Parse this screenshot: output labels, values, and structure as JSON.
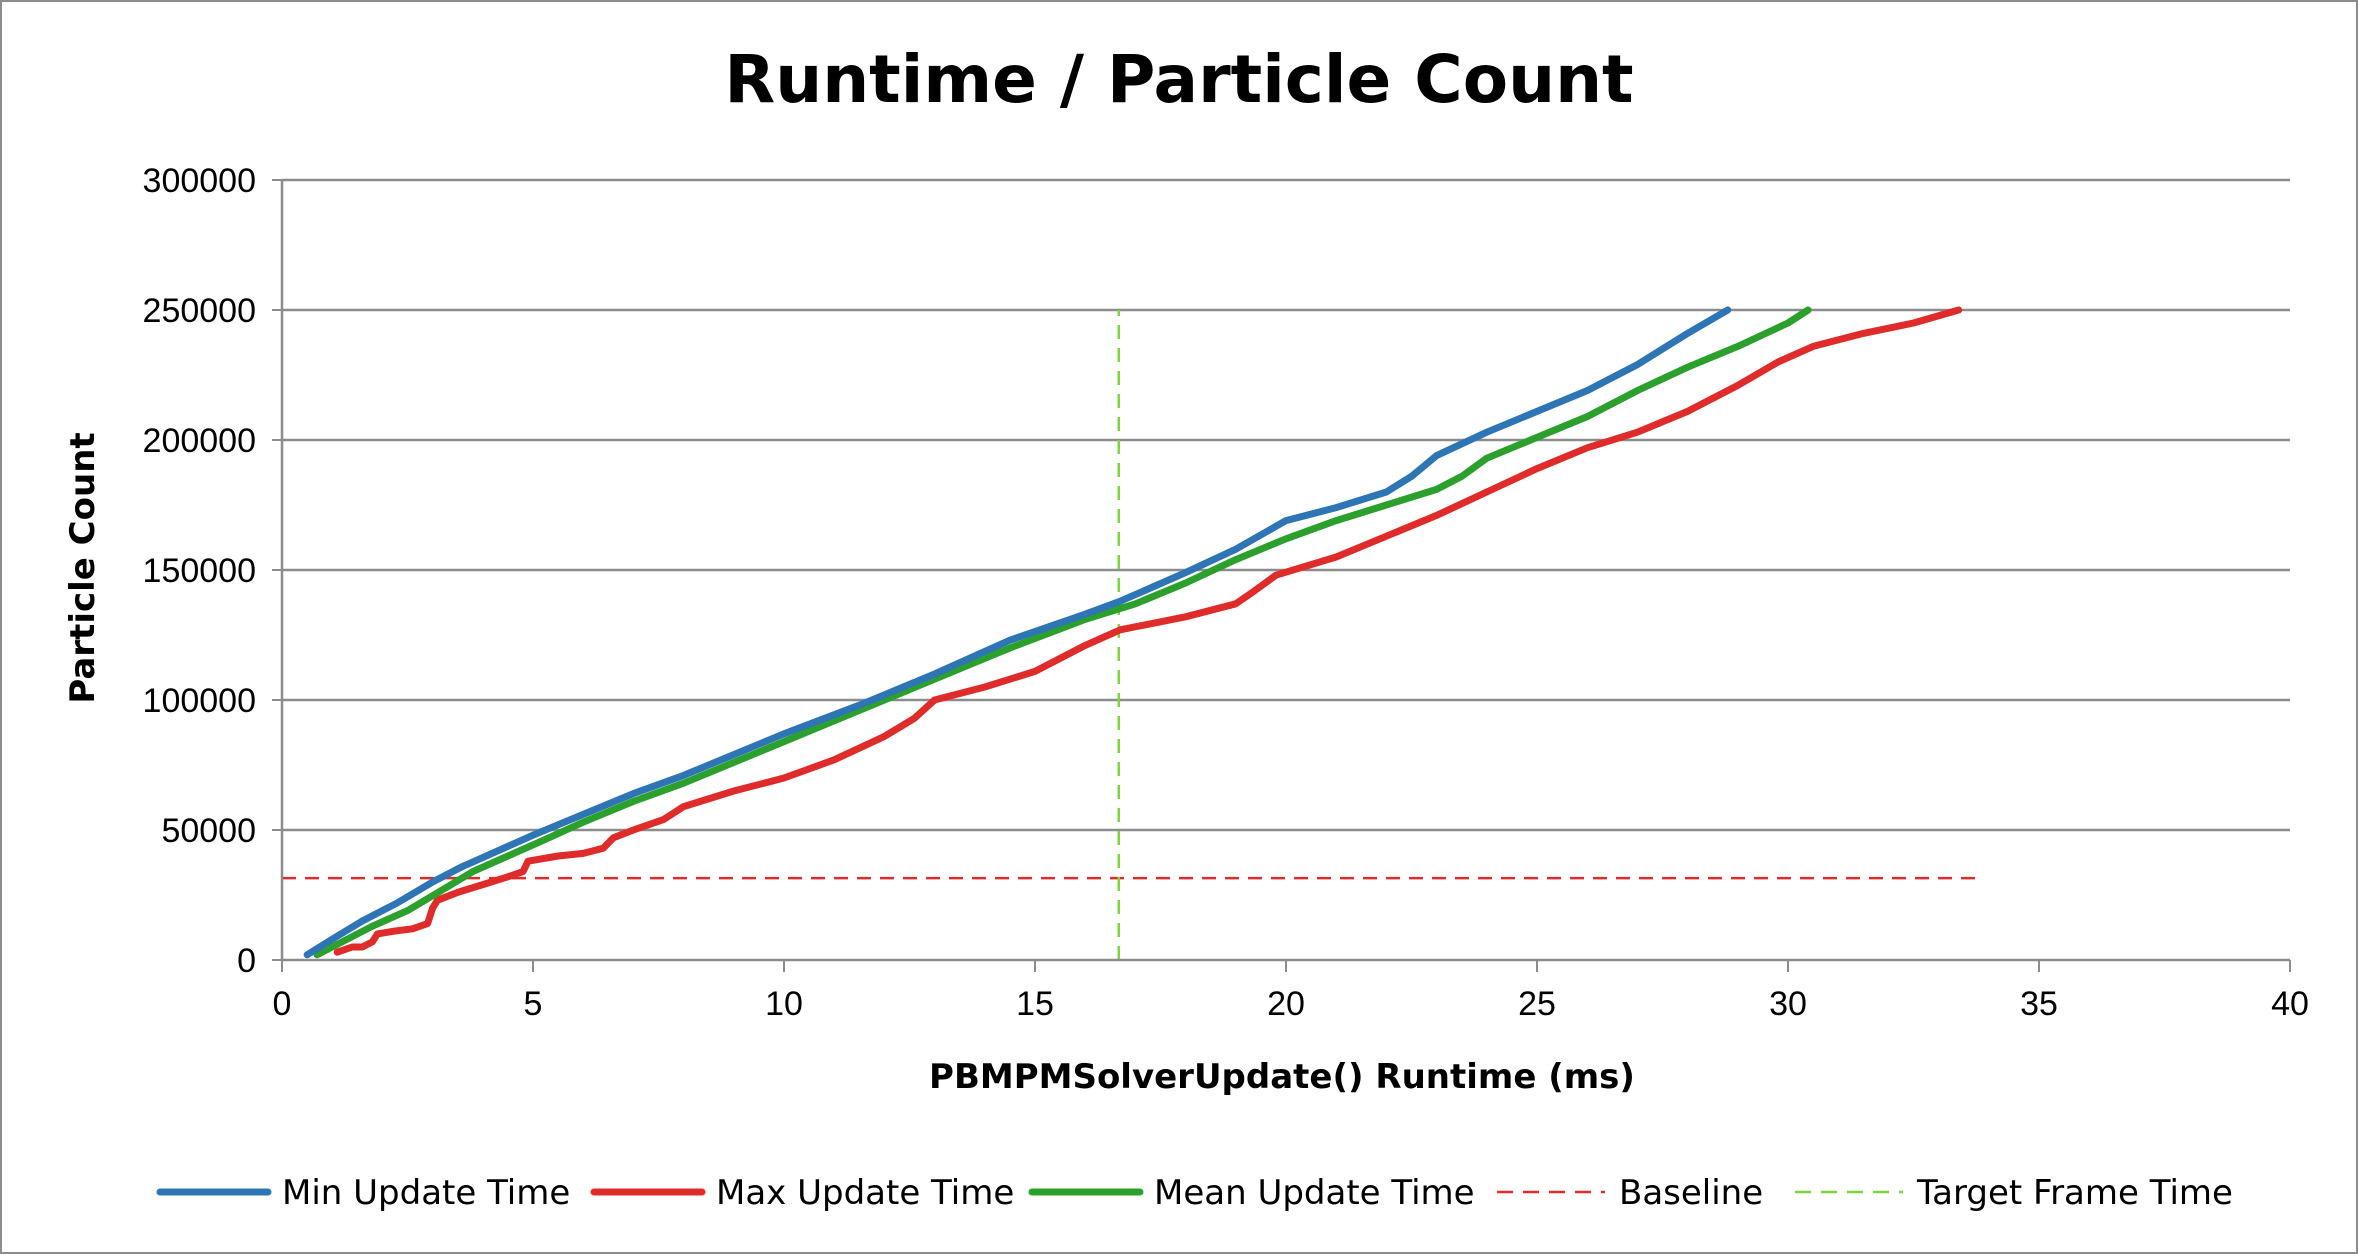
{
  "chart_data": {
    "type": "line",
    "title": "Runtime / Particle Count",
    "xlabel": "PBMPMSolverUpdate() Runtime (ms)",
    "ylabel": "Particle Count",
    "xlim": [
      0,
      40
    ],
    "ylim": [
      0,
      300000
    ],
    "x_ticks": [
      "0",
      "5",
      "10",
      "15",
      "20",
      "25",
      "30",
      "35",
      "40"
    ],
    "y_ticks": [
      "0",
      "50000",
      "100000",
      "150000",
      "200000",
      "250000",
      "300000"
    ],
    "grid": "horizontal",
    "legend_position": "bottom",
    "colors": {
      "min": "#2e75b6",
      "max": "#e02b2b",
      "mean": "#2ca02c",
      "baseline": "#e02b2b",
      "target": "#7ed63f",
      "grid": "#8c8c8c",
      "axis": "#8c8c8c"
    },
    "series": [
      {
        "name": "Min Update Time",
        "key": "min",
        "style": "solid",
        "x": [
          0.5,
          1.0,
          1.6,
          2.3,
          3.0,
          3.6,
          4.3,
          5.0,
          6.0,
          7.0,
          8.0,
          9.0,
          10.0,
          11.5,
          13.0,
          14.5,
          16.0,
          16.7,
          18.0,
          19.0,
          20.0,
          21.0,
          22.0,
          22.5,
          23.0,
          24.0,
          25.0,
          26.0,
          27.0,
          28.0,
          28.8
        ],
        "y": [
          2000,
          8000,
          15000,
          22000,
          30000,
          36000,
          42000,
          48000,
          56000,
          64000,
          71000,
          79000,
          87000,
          98000,
          110000,
          123000,
          133000,
          138000,
          149000,
          158000,
          169000,
          174000,
          180000,
          186000,
          194000,
          203000,
          211000,
          219000,
          229000,
          241000,
          250000
        ]
      },
      {
        "name": "Max Update Time",
        "key": "max",
        "style": "solid",
        "x": [
          1.1,
          1.4,
          1.6,
          1.8,
          1.9,
          2.2,
          2.6,
          2.9,
          3.0,
          3.1,
          3.5,
          4.0,
          4.5,
          4.8,
          4.9,
          5.5,
          6.0,
          6.4,
          6.6,
          7.0,
          7.6,
          8.0,
          9.0,
          10.0,
          11.0,
          12.0,
          12.6,
          13.0,
          14.0,
          15.0,
          16.0,
          16.7,
          18.0,
          19.0,
          19.3,
          19.8,
          21.0,
          22.0,
          23.0,
          24.0,
          25.0,
          26.0,
          27.0,
          28.0,
          29.0,
          29.8,
          30.5,
          31.5,
          32.5,
          33.4
        ],
        "y": [
          3000,
          5000,
          5000,
          7000,
          10000,
          11000,
          12000,
          14000,
          20000,
          23000,
          26000,
          29000,
          32000,
          34000,
          38000,
          40000,
          41000,
          43000,
          47000,
          50000,
          54000,
          59000,
          65000,
          70000,
          77000,
          86000,
          93000,
          100000,
          105000,
          111000,
          121000,
          127000,
          132000,
          137000,
          141000,
          148000,
          155000,
          163000,
          171000,
          180000,
          189000,
          197000,
          203000,
          211000,
          221000,
          230000,
          236000,
          241000,
          245000,
          250000
        ]
      },
      {
        "name": "Mean Update Time",
        "key": "mean",
        "style": "solid",
        "x": [
          0.7,
          1.2,
          1.8,
          2.5,
          3.2,
          3.8,
          4.5,
          5.2,
          6.0,
          7.0,
          8.0,
          9.0,
          10.0,
          11.5,
          13.0,
          14.5,
          16.0,
          17.0,
          18.0,
          19.0,
          20.0,
          21.0,
          22.0,
          23.0,
          23.5,
          24.0,
          25.0,
          26.0,
          27.0,
          28.0,
          29.0,
          30.0,
          30.4
        ],
        "y": [
          2000,
          7000,
          13000,
          19000,
          27000,
          34000,
          40000,
          46000,
          53000,
          61000,
          68000,
          76000,
          84000,
          96000,
          108000,
          120000,
          131000,
          137000,
          145000,
          154000,
          162000,
          169000,
          175000,
          181000,
          186000,
          193000,
          201000,
          209000,
          219000,
          228000,
          236000,
          245000,
          250000
        ]
      },
      {
        "name": "Baseline",
        "key": "baseline",
        "style": "dashed",
        "x": [
          0,
          33.8
        ],
        "y": [
          31500,
          31500
        ]
      },
      {
        "name": "Target Frame Time",
        "key": "target",
        "style": "dashed",
        "x": [
          16.67,
          16.67
        ],
        "y": [
          0,
          250000
        ]
      }
    ]
  }
}
